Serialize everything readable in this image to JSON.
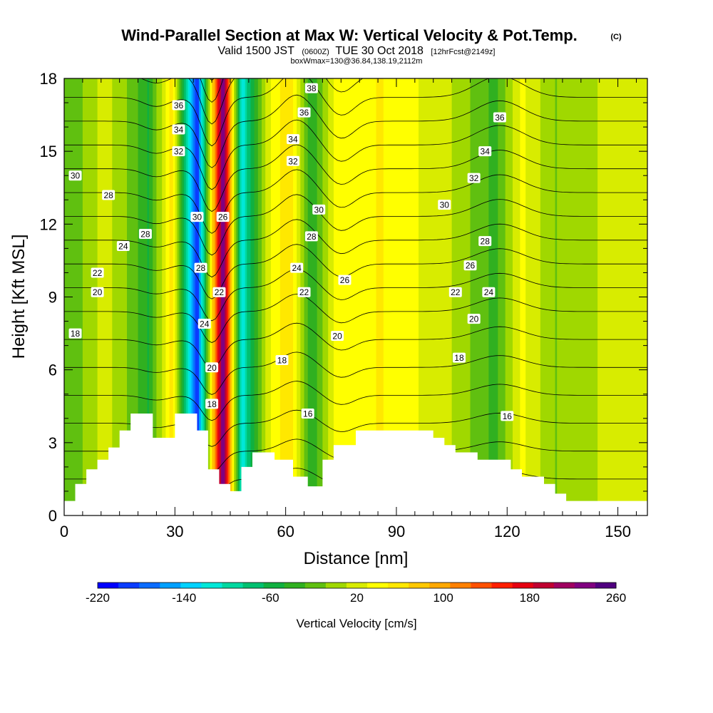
{
  "chart_data": {
    "type": "heatmap",
    "title": "Wind-Parallel Section at Max W: Vertical Velocity & Pot.Temp.",
    "title_mark": "(C)",
    "subtitle_parts": [
      "Valid 1500 JST",
      "(0600Z)",
      "TUE 30 Oct 2018",
      "[12hrFcst@2149z]"
    ],
    "subtitle2": "boxWmax=130@36.84,138.19,2112m",
    "xlabel": "Distance [nm]",
    "ylabel": "Height [Kft MSL]",
    "xlim": [
      0,
      158
    ],
    "ylim": [
      0,
      18
    ],
    "x_ticks": [
      0,
      30,
      60,
      90,
      120,
      150
    ],
    "y_ticks": [
      0,
      3,
      6,
      9,
      12,
      15,
      18
    ],
    "colorbar": {
      "title": "Vertical Velocity [cm/s]",
      "range": [
        -220,
        260
      ],
      "labels": [
        -220,
        -140,
        -60,
        20,
        100,
        180,
        260
      ],
      "colors": [
        "#0000ff",
        "#0a3cff",
        "#0a6cff",
        "#00a0ff",
        "#00d2ff",
        "#00e8d8",
        "#00d8a0",
        "#00c070",
        "#10b040",
        "#30b020",
        "#60c010",
        "#a0d800",
        "#d8ec00",
        "#ffff00",
        "#ffe800",
        "#ffc800",
        "#ffa800",
        "#ff8000",
        "#ff5000",
        "#ff1e00",
        "#e60010",
        "#c00030",
        "#a00060",
        "#800080",
        "#500080"
      ]
    },
    "velocity_columns_cm_s": [
      {
        "x": 3,
        "w": -20
      },
      {
        "x": 11,
        "w": 20
      },
      {
        "x": 18,
        "w": -15
      },
      {
        "x": 23,
        "w": -50
      },
      {
        "x": 29,
        "w": 60
      },
      {
        "x": 36,
        "w": -200
      },
      {
        "x": 43,
        "w": 250
      },
      {
        "x": 48,
        "w": -120
      },
      {
        "x": 55,
        "w": 20
      },
      {
        "x": 61,
        "w": 70
      },
      {
        "x": 67,
        "w": -50
      },
      {
        "x": 74,
        "w": 40
      },
      {
        "x": 86,
        "w": 50
      },
      {
        "x": 96,
        "w": 30
      },
      {
        "x": 105,
        "w": 10
      },
      {
        "x": 117,
        "w": -35
      },
      {
        "x": 124,
        "w": 35
      },
      {
        "x": 133,
        "w": -10
      },
      {
        "x": 142,
        "w": 5
      },
      {
        "x": 149,
        "w": 20
      }
    ],
    "isentropes_deg_C": [
      16,
      18,
      20,
      22,
      24,
      26,
      28,
      30,
      32,
      34,
      36,
      38
    ],
    "contour_labels": [
      {
        "text": "36",
        "x": 31,
        "y": 16.9
      },
      {
        "text": "34",
        "x": 31,
        "y": 15.9
      },
      {
        "text": "32",
        "x": 31,
        "y": 15.0
      },
      {
        "text": "30",
        "x": 36,
        "y": 12.3
      },
      {
        "text": "28",
        "x": 37,
        "y": 10.2
      },
      {
        "text": "24",
        "x": 38,
        "y": 7.9
      },
      {
        "text": "26",
        "x": 43,
        "y": 12.3
      },
      {
        "text": "22",
        "x": 42,
        "y": 9.2
      },
      {
        "text": "20",
        "x": 40,
        "y": 6.1
      },
      {
        "text": "18",
        "x": 40,
        "y": 4.6
      },
      {
        "text": "30",
        "x": 3,
        "y": 14.0
      },
      {
        "text": "28",
        "x": 12,
        "y": 13.2
      },
      {
        "text": "28",
        "x": 22,
        "y": 11.6
      },
      {
        "text": "24",
        "x": 16,
        "y": 11.1
      },
      {
        "text": "22",
        "x": 9,
        "y": 10.0
      },
      {
        "text": "20",
        "x": 9,
        "y": 9.2
      },
      {
        "text": "18",
        "x": 3,
        "y": 7.5
      },
      {
        "text": "38",
        "x": 67,
        "y": 17.6
      },
      {
        "text": "36",
        "x": 65,
        "y": 16.6
      },
      {
        "text": "34",
        "x": 62,
        "y": 15.5
      },
      {
        "text": "32",
        "x": 62,
        "y": 14.6
      },
      {
        "text": "30",
        "x": 69,
        "y": 12.6
      },
      {
        "text": "28",
        "x": 67,
        "y": 11.5
      },
      {
        "text": "24",
        "x": 63,
        "y": 10.2
      },
      {
        "text": "22",
        "x": 65,
        "y": 9.2
      },
      {
        "text": "26",
        "x": 76,
        "y": 9.7
      },
      {
        "text": "20",
        "x": 74,
        "y": 7.4
      },
      {
        "text": "18",
        "x": 59,
        "y": 6.4
      },
      {
        "text": "16",
        "x": 66,
        "y": 4.2
      },
      {
        "text": "36",
        "x": 118,
        "y": 16.4
      },
      {
        "text": "34",
        "x": 114,
        "y": 15.0
      },
      {
        "text": "32",
        "x": 111,
        "y": 13.9
      },
      {
        "text": "30",
        "x": 103,
        "y": 12.8
      },
      {
        "text": "28",
        "x": 114,
        "y": 11.3
      },
      {
        "text": "26",
        "x": 110,
        "y": 10.3
      },
      {
        "text": "24",
        "x": 115,
        "y": 9.2
      },
      {
        "text": "22",
        "x": 106,
        "y": 9.2
      },
      {
        "text": "20",
        "x": 111,
        "y": 8.1
      },
      {
        "text": "18",
        "x": 107,
        "y": 6.5
      },
      {
        "text": "16",
        "x": 120,
        "y": 4.1
      }
    ],
    "terrain": [
      [
        0,
        0.6
      ],
      [
        3,
        0.6
      ],
      [
        3,
        1.3
      ],
      [
        6,
        1.3
      ],
      [
        6,
        1.9
      ],
      [
        9,
        1.9
      ],
      [
        9,
        2.3
      ],
      [
        12,
        2.3
      ],
      [
        12,
        2.8
      ],
      [
        15,
        2.8
      ],
      [
        15,
        3.5
      ],
      [
        18,
        3.5
      ],
      [
        18,
        4.2
      ],
      [
        24,
        4.2
      ],
      [
        24,
        3.2
      ],
      [
        30,
        3.2
      ],
      [
        30,
        4.2
      ],
      [
        36,
        4.2
      ],
      [
        36,
        3.5
      ],
      [
        39,
        3.5
      ],
      [
        39,
        1.9
      ],
      [
        42,
        1.9
      ],
      [
        42,
        1.3
      ],
      [
        45,
        1.3
      ],
      [
        45,
        1.0
      ],
      [
        48,
        1.0
      ],
      [
        48,
        2.0
      ],
      [
        51,
        2.0
      ],
      [
        51,
        2.6
      ],
      [
        57,
        2.6
      ],
      [
        57,
        2.3
      ],
      [
        62,
        2.3
      ],
      [
        62,
        1.6
      ],
      [
        66,
        1.6
      ],
      [
        66,
        1.2
      ],
      [
        70,
        1.2
      ],
      [
        70,
        2.3
      ],
      [
        73,
        2.3
      ],
      [
        73,
        2.9
      ],
      [
        79,
        2.9
      ],
      [
        79,
        3.5
      ],
      [
        100,
        3.5
      ],
      [
        100,
        3.2
      ],
      [
        103,
        3.2
      ],
      [
        103,
        2.9
      ],
      [
        106,
        2.9
      ],
      [
        106,
        2.6
      ],
      [
        112,
        2.6
      ],
      [
        112,
        2.3
      ],
      [
        121,
        2.3
      ],
      [
        121,
        1.9
      ],
      [
        124,
        1.9
      ],
      [
        124,
        1.6
      ],
      [
        130,
        1.6
      ],
      [
        130,
        1.3
      ],
      [
        133,
        1.3
      ],
      [
        133,
        0.9
      ],
      [
        136,
        0.9
      ],
      [
        136,
        0.6
      ],
      [
        158,
        0.6
      ]
    ]
  }
}
